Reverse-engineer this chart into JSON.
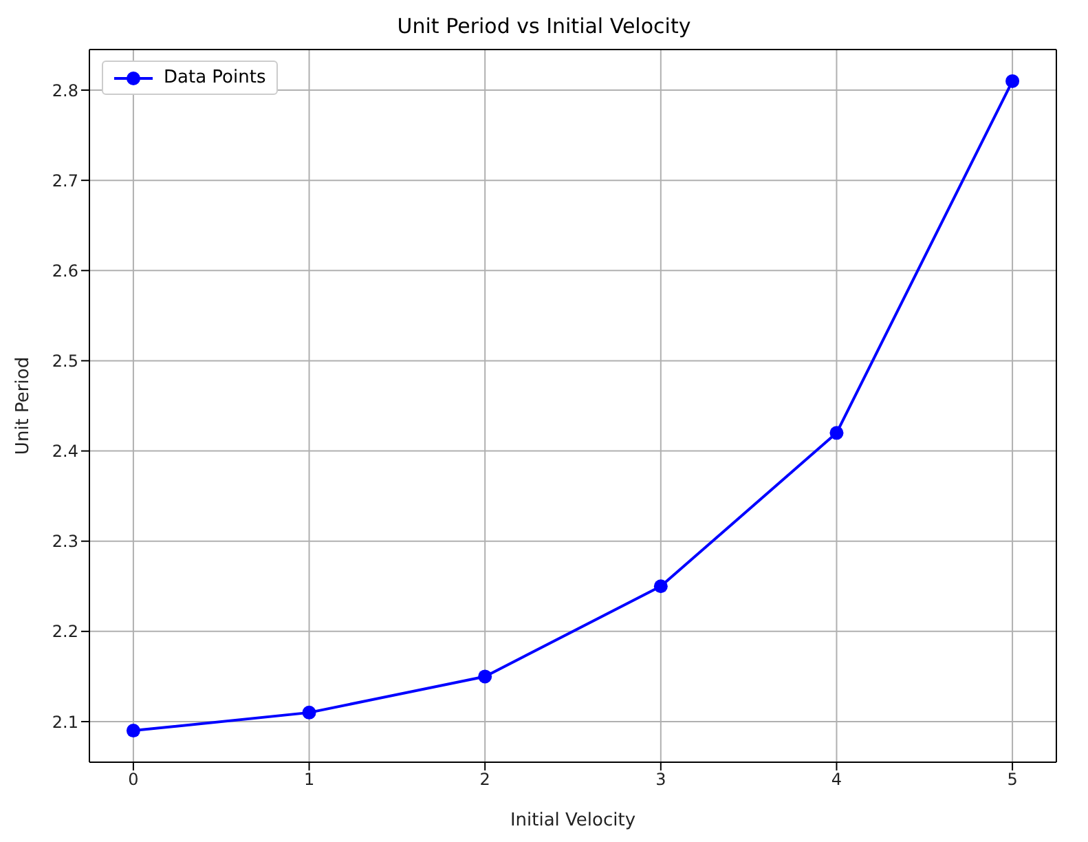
{
  "chart_data": {
    "type": "line",
    "title": "Unit Period vs Initial Velocity",
    "xlabel": "Initial Velocity",
    "ylabel": "Unit Period",
    "x": [
      0,
      1,
      2,
      3,
      4,
      5
    ],
    "series": [
      {
        "name": "Data Points",
        "color": "#0000ff",
        "values": [
          2.09,
          2.11,
          2.15,
          2.25,
          2.42,
          2.81
        ]
      }
    ],
    "xlim": [
      -0.25,
      5.25
    ],
    "xticks": [
      0,
      1,
      2,
      3,
      4,
      5
    ],
    "ylim": [
      2.055,
      2.845
    ],
    "yticks": [
      2.1,
      2.2,
      2.3,
      2.4,
      2.5,
      2.6,
      2.7,
      2.8
    ],
    "grid": true,
    "legend": "top left",
    "marker": "circle",
    "line_style": "solid"
  }
}
